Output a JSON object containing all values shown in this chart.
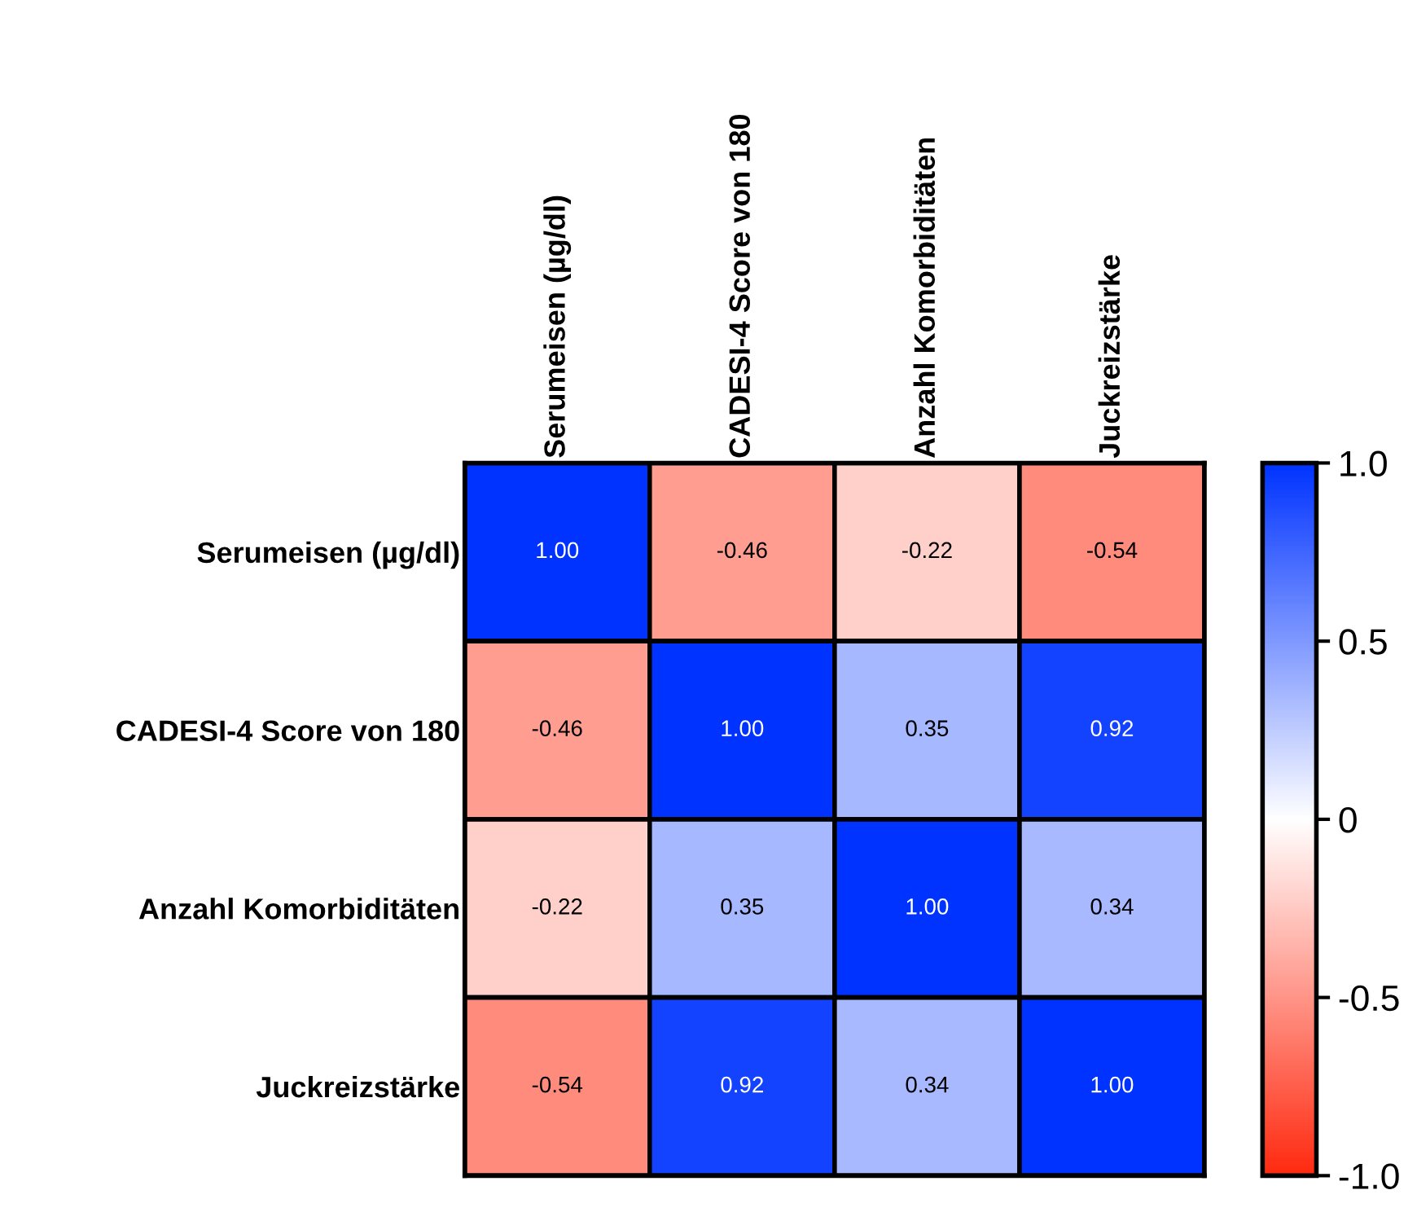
{
  "chart_data": {
    "type": "heatmap",
    "categories": [
      "Serumeisen (µg/dl)",
      "CADESI-4 Score von 180",
      "Anzahl Komorbiditäten",
      "Juckreizstärke"
    ],
    "y_categories": [
      "Serumeisen (µg/dl)",
      "CADESI-4 Score von 180",
      "Anzahl Komorbiditäten",
      "Juckreizstärke"
    ],
    "cells": [
      [
        1.0,
        -0.46,
        -0.22,
        -0.54
      ],
      [
        -0.46,
        1.0,
        0.35,
        0.92
      ],
      [
        -0.22,
        0.35,
        1.0,
        0.34
      ],
      [
        -0.54,
        0.92,
        0.34,
        1.0
      ]
    ],
    "cell_labels": [
      [
        "1.00",
        "-0.46",
        "-0.22",
        "-0.54"
      ],
      [
        "-0.46",
        "1.00",
        "0.35",
        "0.92"
      ],
      [
        "-0.22",
        "0.35",
        "1.00",
        "0.34"
      ],
      [
        "-0.54",
        "0.92",
        "0.34",
        "1.00"
      ]
    ],
    "clim": [
      -1,
      1
    ],
    "cticks": [
      {
        "value": 1.0,
        "label": "1.0"
      },
      0.5,
      0,
      -0.5,
      {
        "value": -1.0,
        "label": "-1.0"
      }
    ]
  }
}
